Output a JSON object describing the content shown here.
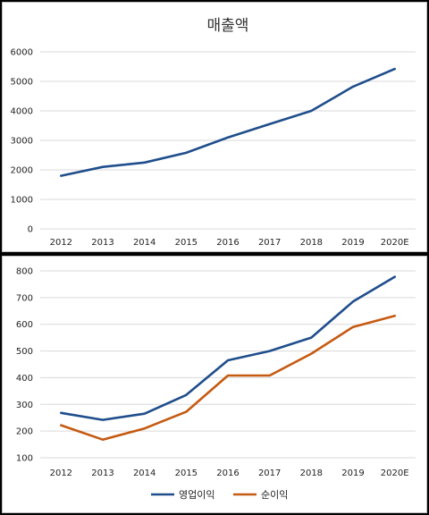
{
  "chart_data": [
    {
      "type": "line",
      "title": "매출액",
      "categories": [
        "2012",
        "2013",
        "2014",
        "2015",
        "2016",
        "2017",
        "2018",
        "2019",
        "2020E"
      ],
      "series": [
        {
          "values": [
            1800,
            2100,
            2250,
            2580,
            3100,
            3550,
            4000,
            4820,
            5420
          ],
          "color": "#1f4e8c"
        }
      ],
      "ylim": [
        0,
        6000
      ],
      "yticks": [
        0,
        1000,
        2000,
        3000,
        4000,
        5000,
        6000
      ],
      "grid": true,
      "legend": "none"
    },
    {
      "type": "line",
      "title": "",
      "categories": [
        "2012",
        "2013",
        "2014",
        "2015",
        "2016",
        "2017",
        "2018",
        "2019",
        "2020E"
      ],
      "series": [
        {
          "name": "영업이익",
          "values": [
            268,
            242,
            265,
            335,
            465,
            500,
            550,
            685,
            778
          ],
          "color": "#1f4e8c"
        },
        {
          "name": "순이익",
          "values": [
            222,
            168,
            210,
            272,
            408,
            408,
            490,
            590,
            632
          ],
          "color": "#c55a11"
        }
      ],
      "ylim": [
        100,
        800
      ],
      "yticks": [
        100,
        200,
        300,
        400,
        500,
        600,
        700,
        800
      ],
      "grid": true,
      "legend": "bottom"
    }
  ]
}
